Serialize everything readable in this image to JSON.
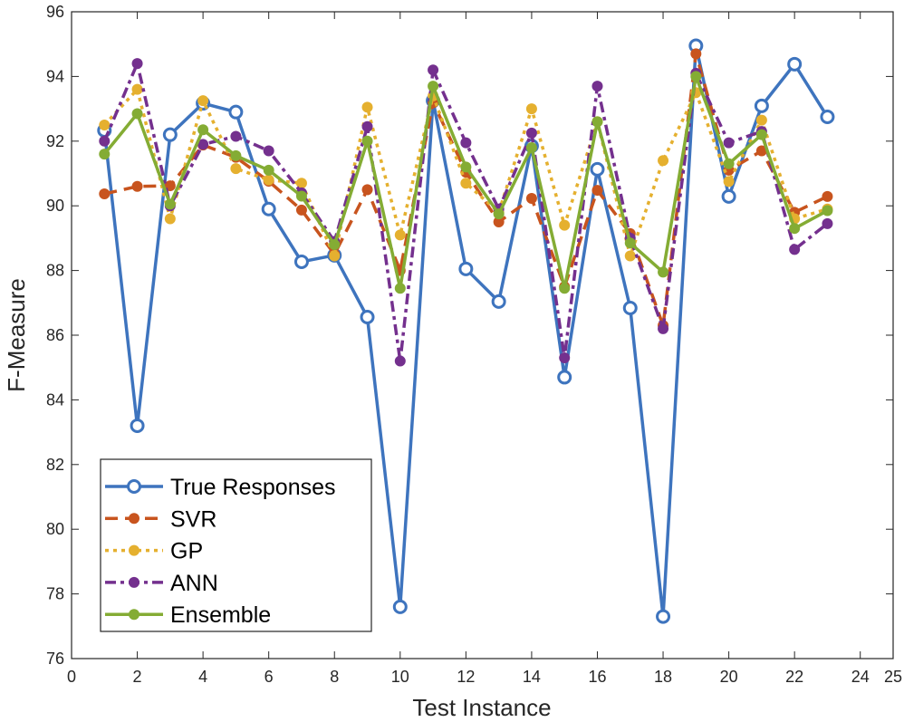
{
  "chart_data": {
    "type": "line",
    "xlabel": "Test Instance",
    "ylabel": "F-Measure",
    "xlim": [
      0,
      25
    ],
    "ylim": [
      76,
      96
    ],
    "xticks": [
      0,
      2,
      4,
      6,
      8,
      10,
      12,
      14,
      16,
      18,
      20,
      22,
      24,
      25
    ],
    "yticks": [
      76,
      78,
      80,
      82,
      84,
      86,
      88,
      90,
      92,
      94,
      96
    ],
    "grid": false,
    "legend_position": "bottom-left",
    "x": [
      1,
      2,
      3,
      4,
      5,
      6,
      7,
      8,
      9,
      10,
      11,
      12,
      13,
      14,
      15,
      16,
      17,
      18,
      19,
      20,
      21,
      22,
      23
    ],
    "series": [
      {
        "name": "True Responses",
        "color": "#3E74BE",
        "style": "solid",
        "marker": "open-circle",
        "values": [
          92.33,
          83.2,
          92.2,
          93.17,
          92.9,
          89.9,
          88.27,
          88.47,
          86.56,
          77.6,
          93.25,
          88.05,
          87.04,
          91.85,
          84.7,
          91.13,
          86.84,
          77.3,
          94.95,
          90.29,
          93.09,
          94.38,
          92.75
        ]
      },
      {
        "name": "SVR",
        "color": "#C8541E",
        "style": "dashed",
        "marker": "filled-circle",
        "values": [
          90.37,
          90.6,
          90.62,
          91.88,
          91.5,
          90.76,
          89.87,
          88.5,
          90.5,
          88.0,
          93.2,
          91.04,
          89.5,
          90.23,
          87.5,
          90.48,
          89.14,
          86.3,
          94.7,
          91.1,
          91.7,
          89.8,
          90.29
        ]
      },
      {
        "name": "GP",
        "color": "#E5B02F",
        "style": "dotted",
        "marker": "filled-circle",
        "values": [
          92.5,
          93.6,
          89.6,
          93.25,
          91.15,
          90.8,
          90.7,
          88.45,
          93.05,
          89.1,
          93.4,
          90.7,
          89.8,
          93.0,
          89.4,
          92.6,
          88.45,
          91.4,
          93.5,
          90.75,
          92.65,
          89.6,
          89.9
        ]
      },
      {
        "name": "ANN",
        "color": "#74308E",
        "style": "dash-dot",
        "marker": "filled-circle",
        "values": [
          92.0,
          94.4,
          90.0,
          91.9,
          92.15,
          91.7,
          90.4,
          88.9,
          92.45,
          85.2,
          94.2,
          91.95,
          89.9,
          92.25,
          85.3,
          93.7,
          89.0,
          86.2,
          94.1,
          91.95,
          92.3,
          88.65,
          89.45
        ]
      },
      {
        "name": "Ensemble",
        "color": "#84AC34",
        "style": "solid",
        "marker": "filled-circle",
        "values": [
          91.6,
          92.85,
          90.05,
          92.35,
          91.55,
          91.1,
          90.3,
          88.8,
          92.0,
          87.45,
          93.7,
          91.2,
          89.75,
          91.8,
          87.45,
          92.6,
          88.85,
          87.95,
          94.0,
          91.3,
          92.2,
          89.3,
          89.85
        ]
      }
    ]
  }
}
